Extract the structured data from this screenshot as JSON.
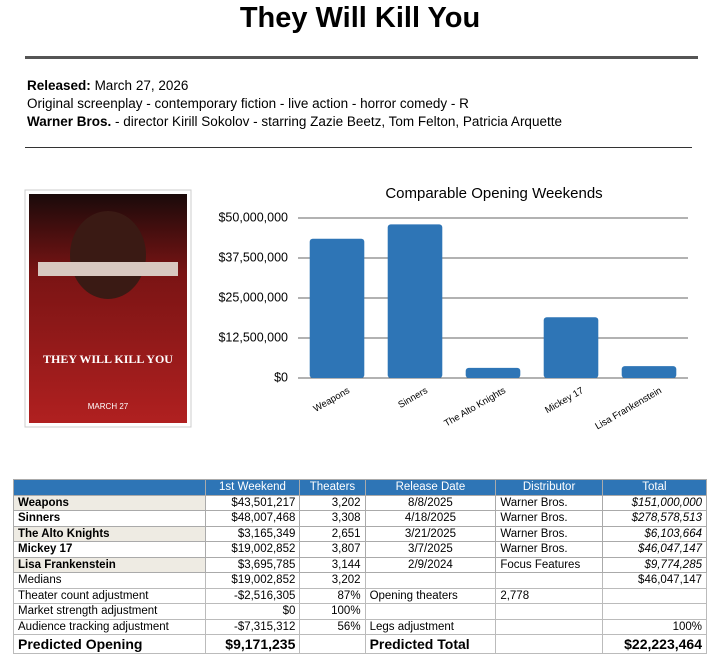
{
  "header": {
    "title": "They Will Kill You"
  },
  "info": {
    "released_label": "Released:",
    "released": "March 27, 2026",
    "genre": "Original screenplay - contemporary fiction - live action - horror comedy - R",
    "studio": "Warner Bros.",
    "credits": "- director Kirill Sokolov - starring Zazie Beetz, Tom Felton, Patricia Arquette"
  },
  "poster": {
    "title": "THEY WILL KILL YOU",
    "date": "MARCH 27"
  },
  "chart_data": {
    "type": "bar",
    "title": "Comparable Opening Weekends",
    "categories": [
      "Weapons",
      "Sinners",
      "The Alto Knights",
      "Mickey 17",
      "Lisa Frankenstein"
    ],
    "values": [
      43501217,
      48007468,
      3165349,
      19002852,
      3695785
    ],
    "color": "#2e75b6",
    "ylim": [
      0,
      50000000
    ],
    "yticks": [
      {
        "value": 0,
        "label": "$0"
      },
      {
        "value": 12500000,
        "label": "$12,500,000"
      },
      {
        "value": 25000000,
        "label": "$25,000,000"
      },
      {
        "value": 37500000,
        "label": "$37,500,000"
      },
      {
        "value": 50000000,
        "label": "$50,000,000"
      }
    ],
    "grid": true
  },
  "table": {
    "header": [
      null,
      "1st Weekend",
      "Theaters",
      "Release Date",
      "Distributor",
      "Total"
    ],
    "rows": [
      [
        "Weapons",
        "$43,501,217",
        "3,202",
        "8/8/2025",
        "Warner Bros.",
        "$151,000,000"
      ],
      [
        "Sinners",
        "$48,007,468",
        "3,308",
        "4/18/2025",
        "Warner Bros.",
        "$278,578,513"
      ],
      [
        "The Alto Knights",
        "$3,165,349",
        "2,651",
        "3/21/2025",
        "Warner Bros.",
        "$6,103,664"
      ],
      [
        "Mickey 17",
        "$19,002,852",
        "3,807",
        "3/7/2025",
        "Warner Bros.",
        "$46,047,147"
      ],
      [
        "Lisa Frankenstein",
        "$3,695,785",
        "3,144",
        "2/9/2024",
        "Focus Features",
        "$9,774,285"
      ]
    ],
    "summary": [
      [
        "Medians",
        "$19,002,852",
        "3,202",
        null,
        null,
        "$46,047,147"
      ],
      [
        "Theater count adjustment",
        "-$2,516,305",
        "87%",
        "Opening theaters",
        "2,778",
        null
      ],
      [
        "Market strength adjustment",
        "$0",
        "100%",
        null,
        null,
        null
      ],
      [
        "Audience tracking adjustment",
        "-$7,315,312",
        "56%",
        "Legs adjustment",
        null,
        "100%"
      ],
      [
        "Predicted Opening",
        "$9,171,235",
        null,
        "Predicted Total",
        null,
        "$22,223,464"
      ]
    ]
  }
}
